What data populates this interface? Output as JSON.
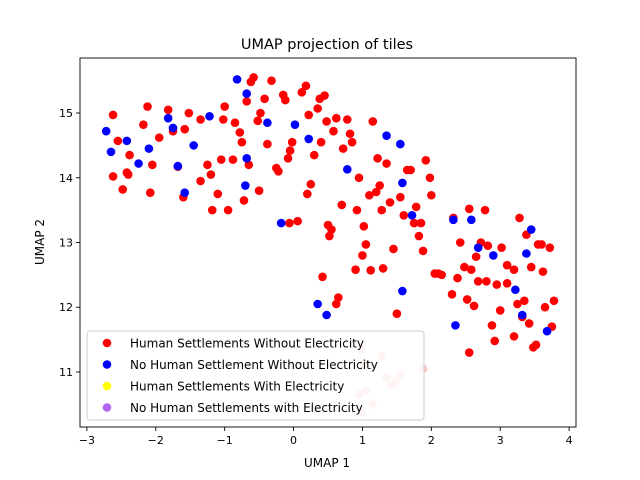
{
  "chart_data": {
    "type": "scatter",
    "title": "UMAP projection of tiles",
    "xlabel": "UMAP 1",
    "ylabel": "UMAP 2",
    "xlim": [
      -3.1,
      4.1
    ],
    "ylim": [
      10.15,
      15.85
    ],
    "xticks": [
      -3,
      -2,
      -1,
      0,
      1,
      2,
      3,
      4
    ],
    "yticks": [
      11,
      12,
      13,
      14,
      15
    ],
    "grid": false,
    "legend_position": "lower-left",
    "series": [
      {
        "name": "Human Settlements Without Electricity",
        "color": "#ff0000",
        "points": [
          [
            -2.62,
            14.97
          ],
          [
            -2.55,
            14.57
          ],
          [
            -2.48,
            13.82
          ],
          [
            -2.42,
            14.08
          ],
          [
            -2.38,
            14.35
          ],
          [
            -2.62,
            14.02
          ],
          [
            -2.18,
            14.82
          ],
          [
            -2.12,
            15.1
          ],
          [
            -2.08,
            13.77
          ],
          [
            -2.05,
            14.2
          ],
          [
            -1.95,
            14.62
          ],
          [
            -1.82,
            15.05
          ],
          [
            -1.75,
            14.72
          ],
          [
            -1.68,
            14.17
          ],
          [
            -1.6,
            13.7
          ],
          [
            -1.58,
            14.75
          ],
          [
            -1.52,
            15.0
          ],
          [
            -1.35,
            13.95
          ],
          [
            -1.25,
            14.2
          ],
          [
            -1.2,
            14.05
          ],
          [
            -1.18,
            13.5
          ],
          [
            -1.1,
            13.75
          ],
          [
            -1.05,
            14.28
          ],
          [
            -1.02,
            14.9
          ],
          [
            -1.0,
            15.1
          ],
          [
            -0.95,
            13.5
          ],
          [
            -0.88,
            14.28
          ],
          [
            -0.85,
            14.85
          ],
          [
            -0.78,
            14.7
          ],
          [
            -0.75,
            14.55
          ],
          [
            -0.72,
            13.65
          ],
          [
            -0.68,
            15.18
          ],
          [
            -0.65,
            14.2
          ],
          [
            -0.62,
            15.48
          ],
          [
            -0.58,
            15.55
          ],
          [
            -0.52,
            14.88
          ],
          [
            -0.48,
            15.0
          ],
          [
            -0.42,
            15.22
          ],
          [
            -0.38,
            14.52
          ],
          [
            -0.32,
            15.5
          ],
          [
            -0.22,
            14.1
          ],
          [
            -0.15,
            15.28
          ],
          [
            -0.12,
            15.2
          ],
          [
            -0.08,
            14.3
          ],
          [
            -0.05,
            14.42
          ],
          [
            -0.02,
            14.55
          ],
          [
            -0.06,
            13.3
          ],
          [
            0.06,
            13.33
          ],
          [
            0.12,
            15.32
          ],
          [
            0.18,
            15.42
          ],
          [
            0.22,
            14.97
          ],
          [
            0.25,
            13.9
          ],
          [
            0.3,
            14.35
          ],
          [
            0.35,
            15.07
          ],
          [
            0.38,
            15.22
          ],
          [
            0.4,
            14.55
          ],
          [
            0.45,
            15.27
          ],
          [
            0.48,
            14.87
          ],
          [
            0.5,
            13.27
          ],
          [
            0.52,
            13.1
          ],
          [
            0.55,
            13.2
          ],
          [
            0.58,
            14.72
          ],
          [
            0.62,
            14.92
          ],
          [
            0.65,
            12.15
          ],
          [
            0.7,
            13.58
          ],
          [
            0.72,
            14.45
          ],
          [
            0.78,
            14.9
          ],
          [
            0.82,
            14.68
          ],
          [
            0.85,
            14.55
          ],
          [
            0.9,
            12.58
          ],
          [
            0.92,
            13.5
          ],
          [
            0.95,
            14.0
          ],
          [
            1.02,
            13.25
          ],
          [
            1.05,
            12.97
          ],
          [
            1.1,
            13.73
          ],
          [
            1.12,
            12.57
          ],
          [
            1.15,
            14.87
          ],
          [
            1.2,
            13.78
          ],
          [
            1.22,
            14.3
          ],
          [
            1.25,
            13.88
          ],
          [
            1.28,
            13.5
          ],
          [
            1.35,
            14.22
          ],
          [
            1.4,
            13.62
          ],
          [
            1.45,
            12.9
          ],
          [
            1.5,
            11.9
          ],
          [
            1.55,
            13.7
          ],
          [
            1.6,
            13.42
          ],
          [
            1.65,
            14.12
          ],
          [
            1.7,
            14.12
          ],
          [
            1.75,
            13.3
          ],
          [
            1.78,
            13.55
          ],
          [
            1.82,
            13.1
          ],
          [
            1.85,
            13.3
          ],
          [
            1.88,
            12.87
          ],
          [
            1.92,
            14.27
          ],
          [
            1.98,
            14.0
          ],
          [
            2.0,
            13.73
          ],
          [
            2.05,
            12.52
          ],
          [
            2.1,
            12.52
          ],
          [
            2.15,
            12.5
          ],
          [
            2.32,
            13.38
          ],
          [
            2.38,
            12.45
          ],
          [
            2.42,
            13.0
          ],
          [
            2.48,
            12.62
          ],
          [
            2.52,
            12.12
          ],
          [
            2.55,
            13.52
          ],
          [
            2.58,
            12.58
          ],
          [
            2.62,
            12.02
          ],
          [
            2.65,
            12.78
          ],
          [
            2.68,
            12.4
          ],
          [
            2.72,
            13.0
          ],
          [
            2.78,
            13.5
          ],
          [
            2.82,
            12.95
          ],
          [
            2.88,
            11.72
          ],
          [
            2.92,
            11.48
          ],
          [
            2.95,
            12.35
          ],
          [
            3.0,
            11.95
          ],
          [
            3.02,
            12.92
          ],
          [
            3.1,
            12.37
          ],
          [
            3.2,
            12.58
          ],
          [
            3.25,
            12.05
          ],
          [
            3.28,
            13.38
          ],
          [
            3.32,
            11.85
          ],
          [
            3.35,
            12.1
          ],
          [
            3.38,
            13.12
          ],
          [
            3.42,
            11.75
          ],
          [
            3.45,
            12.62
          ],
          [
            3.48,
            11.38
          ],
          [
            3.52,
            11.42
          ],
          [
            3.55,
            12.97
          ],
          [
            3.6,
            12.97
          ],
          [
            3.62,
            12.55
          ],
          [
            3.65,
            12.0
          ],
          [
            3.72,
            12.92
          ],
          [
            3.75,
            11.7
          ],
          [
            3.78,
            12.1
          ],
          [
            3.2,
            11.55
          ],
          [
            2.55,
            11.3
          ],
          [
            0.42,
            12.47
          ],
          [
            0.62,
            12.05
          ],
          [
            1.0,
            12.8
          ],
          [
            -0.5,
            13.8
          ],
          [
            -0.25,
            14.15
          ],
          [
            -1.35,
            14.9
          ],
          [
            2.3,
            12.2
          ],
          [
            2.8,
            12.4
          ],
          [
            3.1,
            12.65
          ],
          [
            1.3,
            12.6
          ],
          [
            0.2,
            13.75
          ],
          [
            -2.4,
            14.05
          ]
        ]
      },
      {
        "name": "No Human Settlement Without Electricity",
        "color": "#0000ff",
        "points": [
          [
            -2.72,
            14.72
          ],
          [
            -2.65,
            14.4
          ],
          [
            -2.42,
            14.57
          ],
          [
            -2.25,
            14.22
          ],
          [
            -2.1,
            14.45
          ],
          [
            -1.82,
            14.92
          ],
          [
            -1.75,
            14.77
          ],
          [
            -1.68,
            14.18
          ],
          [
            -1.58,
            13.77
          ],
          [
            -1.45,
            14.5
          ],
          [
            -1.22,
            14.95
          ],
          [
            -0.82,
            15.52
          ],
          [
            -0.68,
            15.3
          ],
          [
            -0.7,
            13.88
          ],
          [
            -0.68,
            14.3
          ],
          [
            -0.38,
            14.85
          ],
          [
            -0.18,
            13.3
          ],
          [
            0.02,
            14.82
          ],
          [
            0.22,
            14.6
          ],
          [
            0.35,
            12.05
          ],
          [
            0.48,
            11.88
          ],
          [
            0.78,
            14.13
          ],
          [
            1.35,
            14.65
          ],
          [
            1.55,
            14.52
          ],
          [
            1.58,
            13.92
          ],
          [
            1.58,
            12.25
          ],
          [
            1.72,
            13.42
          ],
          [
            2.32,
            13.35
          ],
          [
            2.35,
            11.72
          ],
          [
            2.58,
            13.35
          ],
          [
            2.68,
            12.92
          ],
          [
            2.9,
            12.8
          ],
          [
            3.22,
            12.27
          ],
          [
            3.32,
            11.88
          ],
          [
            3.38,
            12.83
          ],
          [
            3.45,
            13.2
          ],
          [
            3.68,
            11.63
          ]
        ]
      },
      {
        "name": "Human Settlements With Electricity",
        "color": "#ffff00",
        "points": []
      },
      {
        "name": "No Human Settlements with Electricity",
        "color": "#b066f0",
        "points": []
      }
    ],
    "faded_points": {
      "color": "#ffc8c8",
      "points": [
        [
          0.98,
          11.35
        ],
        [
          1.02,
          11.12
        ],
        [
          0.95,
          10.65
        ],
        [
          1.05,
          10.72
        ],
        [
          0.98,
          10.37
        ],
        [
          1.15,
          10.5
        ],
        [
          1.28,
          11.25
        ],
        [
          1.35,
          10.92
        ],
        [
          1.42,
          10.8
        ],
        [
          1.48,
          10.85
        ],
        [
          1.55,
          10.95
        ],
        [
          1.88,
          11.05
        ]
      ]
    }
  }
}
